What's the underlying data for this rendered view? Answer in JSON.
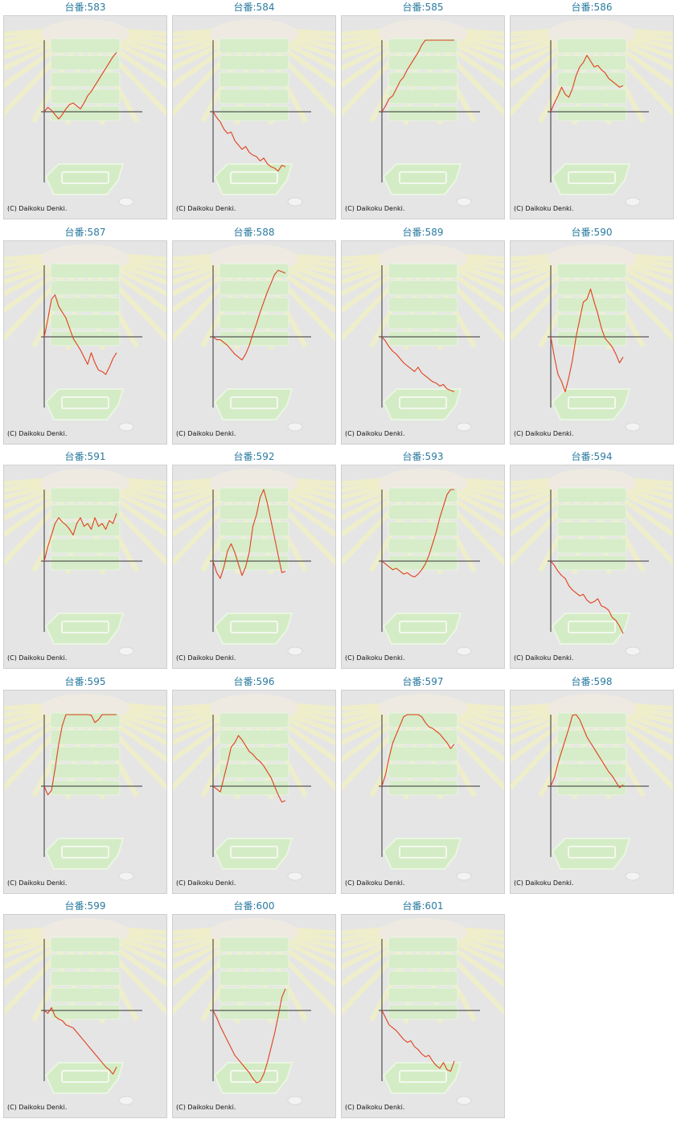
{
  "copyright": "(C) Daikoku Denki.",
  "colors": {
    "title": "#2a7aa0",
    "line": "#e0401c",
    "axis": "#333333",
    "background": "#e5e5e5"
  },
  "chart_data": [
    {
      "type": "line",
      "title": "台番:583",
      "x": [
        0,
        1,
        2,
        3,
        4,
        5,
        6,
        7,
        8,
        9,
        10,
        11,
        12,
        13,
        14,
        15,
        16,
        17,
        18,
        19,
        20
      ],
      "y": [
        0,
        0.15,
        0.05,
        -0.1,
        -0.25,
        -0.1,
        0.1,
        0.25,
        0.3,
        0.2,
        0.1,
        0.3,
        0.55,
        0.7,
        0.9,
        1.1,
        1.3,
        1.5,
        1.7,
        1.9,
        2.05
      ]
    },
    {
      "type": "line",
      "title": "台番:584",
      "x": [
        0,
        1,
        2,
        3,
        4,
        5,
        6,
        7,
        8,
        9,
        10,
        11,
        12,
        13,
        14,
        15,
        16,
        17,
        18,
        19,
        20
      ],
      "y": [
        0,
        -0.2,
        -0.35,
        -0.6,
        -0.75,
        -0.7,
        -1,
        -1.15,
        -1.3,
        -1.2,
        -1.4,
        -1.5,
        -1.55,
        -1.7,
        -1.6,
        -1.8,
        -1.9,
        -1.95,
        -2.05,
        -1.85,
        -1.9
      ]
    },
    {
      "type": "line",
      "title": "台番:585",
      "x": [
        0,
        1,
        2,
        3,
        4,
        5,
        6,
        7,
        8,
        9,
        10,
        11,
        12,
        13,
        14,
        15,
        16,
        17,
        18,
        19,
        20
      ],
      "y": [
        0,
        0.2,
        0.45,
        0.55,
        0.8,
        1.05,
        1.2,
        1.45,
        1.65,
        1.85,
        2.05,
        2.3,
        2.5,
        2.75,
        2.95,
        3.15,
        3.35,
        3.55,
        3.75,
        3.95,
        4.15
      ]
    },
    {
      "type": "line",
      "title": "台番:586",
      "x": [
        0,
        1,
        2,
        3,
        4,
        5,
        6,
        7,
        8,
        9,
        10,
        11,
        12,
        13,
        14,
        15,
        16,
        17,
        18,
        19,
        20
      ],
      "y": [
        0,
        0.3,
        0.55,
        0.85,
        0.6,
        0.5,
        0.8,
        1.25,
        1.55,
        1.7,
        1.95,
        1.75,
        1.55,
        1.6,
        1.45,
        1.35,
        1.15,
        1.05,
        0.95,
        0.85,
        0.9
      ]
    },
    {
      "type": "line",
      "title": "台番:587",
      "x": [
        0,
        1,
        2,
        3,
        4,
        5,
        6,
        7,
        8,
        9,
        10,
        11,
        12,
        13,
        14,
        15,
        16,
        17,
        18,
        19,
        20
      ],
      "y": [
        0,
        0.6,
        1.3,
        1.45,
        1.05,
        0.85,
        0.65,
        0.3,
        -0.05,
        -0.25,
        -0.45,
        -0.7,
        -0.95,
        -0.55,
        -0.9,
        -1.15,
        -1.2,
        -1.3,
        -1.05,
        -0.75,
        -0.55
      ]
    },
    {
      "type": "line",
      "title": "台番:588",
      "x": [
        0,
        1,
        2,
        3,
        4,
        5,
        6,
        7,
        8,
        9,
        10,
        11,
        12,
        13,
        14,
        15,
        16,
        17,
        18,
        19,
        20
      ],
      "y": [
        0,
        -0.1,
        -0.1,
        -0.2,
        -0.3,
        -0.45,
        -0.6,
        -0.7,
        -0.8,
        -0.6,
        -0.3,
        0.1,
        0.45,
        0.85,
        1.2,
        1.55,
        1.85,
        2.15,
        2.3,
        2.25,
        2.2
      ]
    },
    {
      "type": "line",
      "title": "台番:589",
      "x": [
        0,
        1,
        2,
        3,
        4,
        5,
        6,
        7,
        8,
        9,
        10,
        11,
        12,
        13,
        14,
        15,
        16,
        17,
        18,
        19,
        20
      ],
      "y": [
        0,
        -0.15,
        -0.35,
        -0.5,
        -0.6,
        -0.75,
        -0.9,
        -1,
        -1.1,
        -1.2,
        -1.05,
        -1.25,
        -1.35,
        -1.45,
        -1.55,
        -1.6,
        -1.7,
        -1.65,
        -1.8,
        -1.85,
        -1.9
      ]
    },
    {
      "type": "line",
      "title": "台番:590",
      "x": [
        0,
        1,
        2,
        3,
        4,
        5,
        6,
        7,
        8,
        9,
        10,
        11,
        12,
        13,
        14,
        15,
        16,
        17,
        18,
        19,
        20
      ],
      "y": [
        0,
        -0.7,
        -1.3,
        -1.55,
        -1.9,
        -1.4,
        -0.8,
        0,
        0.6,
        1.2,
        1.3,
        1.65,
        1.2,
        0.8,
        0.3,
        -0.05,
        -0.2,
        -0.35,
        -0.6,
        -0.9,
        -0.7
      ]
    },
    {
      "type": "line",
      "title": "台番:591",
      "x": [
        0,
        1,
        2,
        3,
        4,
        5,
        6,
        7,
        8,
        9,
        10,
        11,
        12,
        13,
        14,
        15,
        16,
        17,
        18,
        19,
        20
      ],
      "y": [
        0,
        0.5,
        0.9,
        1.3,
        1.5,
        1.35,
        1.25,
        1.1,
        0.9,
        1.3,
        1.5,
        1.2,
        1.3,
        1.1,
        1.5,
        1.2,
        1.3,
        1.1,
        1.4,
        1.3,
        1.65
      ]
    },
    {
      "type": "line",
      "title": "台番:592",
      "x": [
        0,
        1,
        2,
        3,
        4,
        5,
        6,
        7,
        8,
        9,
        10,
        11,
        12,
        13,
        14,
        15,
        16,
        17,
        18,
        19,
        20
      ],
      "y": [
        0,
        -0.4,
        -0.6,
        -0.2,
        0.35,
        0.6,
        0.3,
        -0.1,
        -0.5,
        -0.2,
        0.3,
        1.2,
        1.6,
        2.2,
        2.5,
        2,
        1.4,
        0.8,
        0.2,
        -0.4,
        -0.35
      ]
    },
    {
      "type": "line",
      "title": "台番:593",
      "x": [
        0,
        1,
        2,
        3,
        4,
        5,
        6,
        7,
        8,
        9,
        10,
        11,
        12,
        13,
        14,
        15,
        16,
        17,
        18,
        19,
        20
      ],
      "y": [
        0,
        -0.1,
        -0.2,
        -0.3,
        -0.25,
        -0.35,
        -0.45,
        -0.4,
        -0.5,
        -0.55,
        -0.45,
        -0.3,
        -0.1,
        0.2,
        0.6,
        1.0,
        1.5,
        1.9,
        2.3,
        2.6,
        2.8
      ]
    },
    {
      "type": "line",
      "title": "台番:594",
      "x": [
        0,
        1,
        2,
        3,
        4,
        5,
        6,
        7,
        8,
        9,
        10,
        11,
        12,
        13,
        14,
        15,
        16,
        17,
        18,
        19,
        20
      ],
      "y": [
        0,
        -0.15,
        -0.35,
        -0.5,
        -0.6,
        -0.85,
        -1,
        -1.1,
        -1.2,
        -1.15,
        -1.35,
        -1.45,
        -1.4,
        -1.3,
        -1.55,
        -1.6,
        -1.7,
        -1.95,
        -2.05,
        -2.25,
        -2.5
      ]
    },
    {
      "type": "line",
      "title": "台番:595",
      "x": [
        0,
        1,
        2,
        3,
        4,
        5,
        6,
        7,
        8,
        9,
        10,
        11,
        12,
        13,
        14,
        15,
        16,
        17,
        18,
        19,
        20
      ],
      "y": [
        0,
        -0.3,
        -0.15,
        0.6,
        1.45,
        2.1,
        2.6,
        3.0,
        2.9,
        3.05,
        2.8,
        2.9,
        2.6,
        2.45,
        2.2,
        2.3,
        2.7,
        2.9,
        2.7,
        2.85,
        2.95
      ]
    },
    {
      "type": "line",
      "title": "台番:596",
      "x": [
        0,
        1,
        2,
        3,
        4,
        5,
        6,
        7,
        8,
        9,
        10,
        11,
        12,
        13,
        14,
        15,
        16,
        17,
        18,
        19,
        20
      ],
      "y": [
        0,
        -0.1,
        -0.2,
        0.3,
        0.8,
        1.35,
        1.5,
        1.75,
        1.6,
        1.4,
        1.2,
        1.1,
        0.95,
        0.85,
        0.7,
        0.5,
        0.3,
        0,
        -0.3,
        -0.55,
        -0.5
      ]
    },
    {
      "type": "line",
      "title": "台番:597",
      "x": [
        0,
        1,
        2,
        3,
        4,
        5,
        6,
        7,
        8,
        9,
        10,
        11,
        12,
        13,
        14,
        15,
        16,
        17,
        18,
        19,
        20
      ],
      "y": [
        0,
        0.4,
        1.0,
        1.5,
        1.8,
        2.1,
        2.4,
        2.55,
        2.75,
        2.55,
        2.6,
        2.4,
        2.2,
        2.05,
        2.0,
        1.9,
        1.8,
        1.65,
        1.5,
        1.3,
        1.45
      ]
    },
    {
      "type": "line",
      "title": "台番:598",
      "x": [
        0,
        1,
        2,
        3,
        4,
        5,
        6,
        7,
        8,
        9,
        10,
        11,
        12,
        13,
        14,
        15,
        16,
        17,
        18,
        19,
        20
      ],
      "y": [
        0,
        0.3,
        0.8,
        1.2,
        1.6,
        2.0,
        2.45,
        2.6,
        2.3,
        2.0,
        1.7,
        1.5,
        1.3,
        1.1,
        0.9,
        0.7,
        0.5,
        0.35,
        0.15,
        -0.05,
        0.05
      ]
    },
    {
      "type": "line",
      "title": "台番:599",
      "x": [
        0,
        1,
        2,
        3,
        4,
        5,
        6,
        7,
        8,
        9,
        10,
        11,
        12,
        13,
        14,
        15,
        16,
        17,
        18,
        19,
        20
      ],
      "y": [
        0,
        -0.1,
        0.1,
        -0.2,
        -0.3,
        -0.35,
        -0.5,
        -0.55,
        -0.6,
        -0.75,
        -0.9,
        -1.05,
        -1.2,
        -1.35,
        -1.5,
        -1.65,
        -1.8,
        -1.95,
        -2.05,
        -2.2,
        -1.95
      ]
    },
    {
      "type": "line",
      "title": "台番:600",
      "x": [
        0,
        1,
        2,
        3,
        4,
        5,
        6,
        7,
        8,
        9,
        10,
        11,
        12,
        13,
        14,
        15,
        16,
        17,
        18,
        19,
        20
      ],
      "y": [
        0,
        -0.25,
        -0.55,
        -0.8,
        -1.05,
        -1.3,
        -1.55,
        -1.7,
        -1.85,
        -2.0,
        -2.15,
        -2.35,
        -2.5,
        -2.45,
        -2.2,
        -1.8,
        -1.3,
        -0.8,
        -0.2,
        0.45,
        0.75
      ]
    },
    {
      "type": "line",
      "title": "台番:601",
      "x": [
        0,
        1,
        2,
        3,
        4,
        5,
        6,
        7,
        8,
        9,
        10,
        11,
        12,
        13,
        14,
        15,
        16,
        17,
        18,
        19,
        20
      ],
      "y": [
        0,
        -0.25,
        -0.5,
        -0.6,
        -0.7,
        -0.85,
        -1.0,
        -1.1,
        -1.05,
        -1.25,
        -1.35,
        -1.5,
        -1.6,
        -1.55,
        -1.75,
        -1.9,
        -2.0,
        -1.8,
        -2.05,
        -2.1,
        -1.75
      ]
    }
  ]
}
